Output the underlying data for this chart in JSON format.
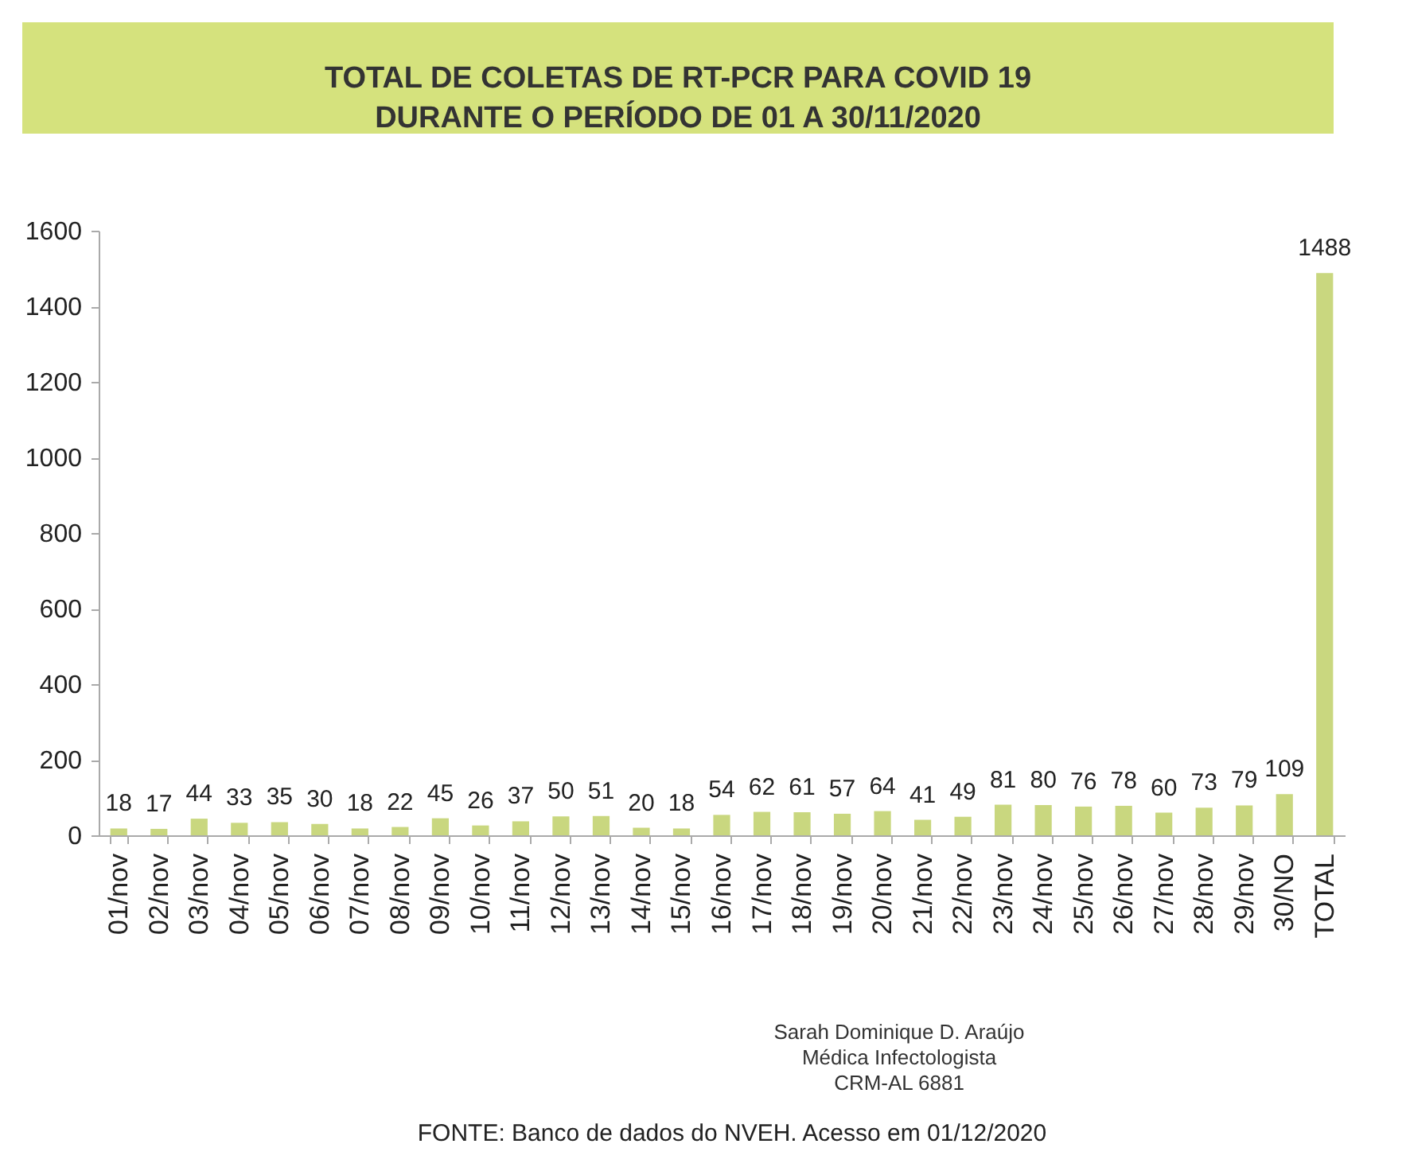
{
  "chart_data": {
    "type": "bar",
    "title": "TOTAL DE COLETAS DE RT-PCR PARA COVID 19\nDURANTE O PERÍODO DE 01 A 30/11/2020",
    "categories": [
      "01/nov",
      "02/nov",
      "03/nov",
      "04/nov",
      "05/nov",
      "06/nov",
      "07/nov",
      "08/nov",
      "09/nov",
      "10/nov",
      "11/nov",
      "12/nov",
      "13/nov",
      "14/nov",
      "15/nov",
      "16/nov",
      "17/nov",
      "18/nov",
      "19/nov",
      "20/nov",
      "21/nov",
      "22/nov",
      "23/nov",
      "24/nov",
      "25/nov",
      "26/nov",
      "27/nov",
      "28/nov",
      "29/nov",
      "30/NO",
      "TOTAL"
    ],
    "values": [
      18,
      17,
      44,
      33,
      35,
      30,
      18,
      22,
      45,
      26,
      37,
      50,
      51,
      20,
      18,
      54,
      62,
      61,
      57,
      64,
      41,
      49,
      81,
      80,
      76,
      78,
      60,
      73,
      79,
      109,
      1488
    ],
    "color": "#c9d77f",
    "ylim": [
      0,
      1600
    ],
    "yticks": [
      0,
      200,
      400,
      600,
      800,
      1000,
      1200,
      1400,
      1600
    ],
    "grid": false,
    "data_labels": true,
    "annotations": [
      "Sarah Dominique D. Araújo",
      "Médica Infectologista",
      "CRM-AL 6881",
      "FONTE: Banco de dados do NVEH. Acesso em 01/12/2020"
    ]
  }
}
